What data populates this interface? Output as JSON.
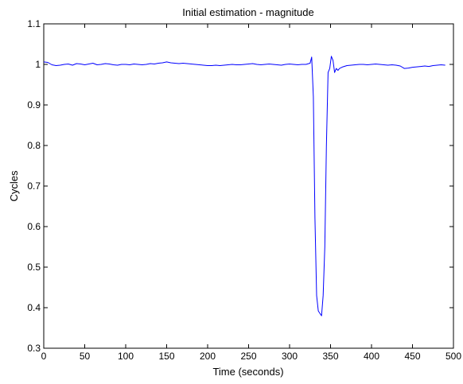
{
  "chart_data": {
    "type": "line",
    "title": "Initial estimation - magnitude",
    "xlabel": "Time (seconds)",
    "ylabel": "Cycles",
    "xlim": [
      0,
      500
    ],
    "ylim": [
      0.3,
      1.1
    ],
    "x_ticks": [
      0,
      50,
      100,
      150,
      200,
      250,
      300,
      350,
      400,
      450,
      500
    ],
    "y_ticks": [
      0.3,
      0.4,
      0.5,
      0.6,
      0.7,
      0.8,
      0.9,
      1,
      1.1
    ],
    "x_tick_labels": [
      "0",
      "50",
      "100",
      "150",
      "200",
      "250",
      "300",
      "350",
      "400",
      "450",
      "500"
    ],
    "y_tick_labels": [
      "0.3",
      "0.4",
      "0.5",
      "0.6",
      "0.7",
      "0.8",
      "0.9",
      "1",
      "1.1"
    ],
    "grid": false,
    "series": [
      {
        "color": "#0000ff",
        "x": [
          0,
          5,
          10,
          15,
          20,
          25,
          30,
          35,
          40,
          45,
          50,
          55,
          60,
          65,
          70,
          75,
          80,
          85,
          90,
          95,
          100,
          105,
          110,
          115,
          120,
          125,
          130,
          135,
          140,
          145,
          150,
          155,
          160,
          165,
          170,
          175,
          180,
          185,
          190,
          195,
          200,
          205,
          210,
          215,
          220,
          225,
          230,
          235,
          240,
          245,
          250,
          255,
          260,
          265,
          270,
          275,
          280,
          285,
          290,
          295,
          300,
          305,
          310,
          315,
          320,
          325,
          327,
          329,
          331,
          333,
          335,
          337,
          339,
          341,
          343,
          345,
          347,
          349,
          351,
          353,
          355,
          357,
          359,
          361,
          363,
          365,
          370,
          375,
          380,
          385,
          390,
          395,
          400,
          405,
          410,
          415,
          420,
          425,
          430,
          435,
          440,
          445,
          450,
          455,
          460,
          465,
          470,
          475,
          480,
          485,
          490
        ],
        "values": [
          1.006,
          1.005,
          0.999,
          0.997,
          0.998,
          1.0,
          1.001,
          0.998,
          1.002,
          1.001,
          0.999,
          1.001,
          1.003,
          0.999,
          1.0,
          1.002,
          1.001,
          0.999,
          0.998,
          1.0,
          1.0,
          0.999,
          1.001,
          1.0,
          0.999,
          1.0,
          1.002,
          1.001,
          1.003,
          1.004,
          1.006,
          1.004,
          1.003,
          1.002,
          1.003,
          1.002,
          1.001,
          1.0,
          0.999,
          0.998,
          0.997,
          0.997,
          0.998,
          0.997,
          0.998,
          0.999,
          1.0,
          0.999,
          0.999,
          1.0,
          1.001,
          1.002,
          1.0,
          0.999,
          1.0,
          1.001,
          1.0,
          0.999,
          0.998,
          1.0,
          1.001,
          1.0,
          0.999,
          1.0,
          1.0,
          1.003,
          1.018,
          0.92,
          0.62,
          0.43,
          0.392,
          0.386,
          0.38,
          0.43,
          0.55,
          0.8,
          0.98,
          0.99,
          1.02,
          1.01,
          0.98,
          0.99,
          0.985,
          0.99,
          0.992,
          0.994,
          0.997,
          0.998,
          0.999,
          1.0,
          1.0,
          0.999,
          1.0,
          1.001,
          1.0,
          0.999,
          0.998,
          0.999,
          0.998,
          0.996,
          0.99,
          0.991,
          0.993,
          0.994,
          0.995,
          0.996,
          0.995,
          0.997,
          0.998,
          0.999,
          0.998
        ]
      }
    ]
  }
}
